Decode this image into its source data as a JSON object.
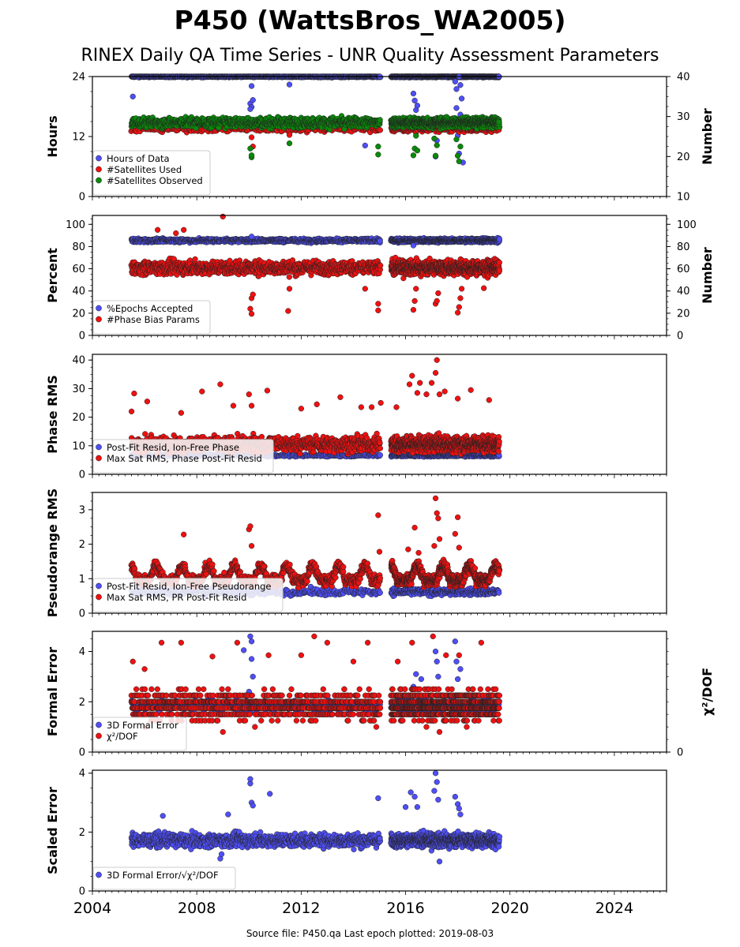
{
  "title": "P450 (WattsBros_WA2005)",
  "subtitle": "RINEX Daily QA Time Series - UNR Quality Assessment Parameters",
  "footer": "Source file: P450.qa Last epoch plotted: 2019-08-03",
  "colors": {
    "blue": "#4f4ff5",
    "red": "#ee1111",
    "green": "#0a8a0a",
    "edge": "#222222"
  },
  "chart_data": [
    {
      "type": "scatter",
      "panel": "hours",
      "ylabel": "Hours",
      "ylabel_right": "Number",
      "xlim": [
        2004,
        2026
      ],
      "ylim": [
        0,
        24
      ],
      "yticks": [
        "0",
        "12",
        "24"
      ],
      "ylim_right": [
        10,
        40
      ],
      "yticks_right": [
        "10",
        "20",
        "30",
        "40"
      ],
      "legend_position": "lower-left",
      "series": [
        {
          "name": "Hours of Data",
          "color": "blue",
          "axis": "left",
          "base": 24,
          "noise": 0.15,
          "density": 3,
          "dips": [
            [
              2005.55,
              20.0
            ],
            [
              2010.05,
              18.6
            ],
            [
              2010.1,
              17.9
            ],
            [
              2010.15,
              19.3
            ],
            [
              2010.1,
              22.1
            ],
            [
              2010.05,
              17.5
            ],
            [
              2011.55,
              22.4
            ],
            [
              2014.45,
              10.2
            ],
            [
              2016.3,
              20.6
            ],
            [
              2016.35,
              19.2
            ],
            [
              2016.4,
              17.3
            ],
            [
              2016.4,
              14.8
            ],
            [
              2016.45,
              18.2
            ],
            [
              2017.15,
              8.0
            ],
            [
              2017.2,
              11.2
            ],
            [
              2017.25,
              15.6
            ],
            [
              2017.9,
              23.0
            ],
            [
              2017.95,
              21.5
            ],
            [
              2017.95,
              17.7
            ],
            [
              2018.0,
              14.5
            ],
            [
              2018.0,
              12.2
            ],
            [
              2018.05,
              8.6
            ],
            [
              2018.1,
              16.4
            ],
            [
              2018.15,
              19.6
            ],
            [
              2018.2,
              6.8
            ],
            [
              2018.1,
              22.3
            ],
            [
              2018.05,
              24.0
            ]
          ]
        },
        {
          "name": "#Satellites Used",
          "color": "red",
          "axis": "right",
          "base": 27,
          "noise": 0.8,
          "density": 1,
          "dips": [
            [
              2010.1,
              24.8
            ],
            [
              2011.55,
              25.4
            ],
            [
              2010.15,
              22.5
            ]
          ]
        },
        {
          "name": "#Satellites Observed",
          "color": "green",
          "axis": "right",
          "base": 28.5,
          "noise": 1.2,
          "density": 3,
          "dips": [
            [
              2010.05,
              22.0
            ],
            [
              2010.1,
              19.8
            ],
            [
              2010.1,
              20.3
            ],
            [
              2011.55,
              23.3
            ],
            [
              2014.95,
              22.5
            ],
            [
              2014.95,
              20.5
            ],
            [
              2016.3,
              20.3
            ],
            [
              2016.35,
              22.0
            ],
            [
              2016.4,
              25.2
            ],
            [
              2016.45,
              21.5
            ],
            [
              2017.1,
              24.5
            ],
            [
              2017.15,
              20.2
            ],
            [
              2017.2,
              22.8
            ],
            [
              2017.95,
              24.3
            ],
            [
              2018.0,
              20.2
            ],
            [
              2018.05,
              18.8
            ],
            [
              2018.1,
              22.5
            ]
          ]
        }
      ]
    },
    {
      "type": "scatter",
      "panel": "percent",
      "ylabel": "Percent",
      "ylabel_right": "Number",
      "xlim": [
        2004,
        2026
      ],
      "ylim": [
        0,
        108
      ],
      "yticks": [
        "0",
        "20",
        "40",
        "60",
        "80",
        "100"
      ],
      "ylim_right": [
        0,
        108
      ],
      "yticks_right": [
        "0",
        "20",
        "40",
        "60",
        "80",
        "100"
      ],
      "legend_position": "lower-left",
      "series": [
        {
          "name": "%Epochs Accepted",
          "color": "blue",
          "axis": "left",
          "base": 85.5,
          "noise": 1.6,
          "density": 3,
          "dips": [
            [
              2010.1,
              89.0
            ],
            [
              2016.3,
              81.0
            ]
          ]
        },
        {
          "name": "#Phase Bias Params",
          "color": "red",
          "axis": "left",
          "base": 61,
          "noise": 6,
          "density": 3,
          "dips": [
            [
              2006.5,
              95
            ],
            [
              2007.2,
              92
            ],
            [
              2007.5,
              95
            ],
            [
              2009.0,
              107
            ],
            [
              2010.1,
              19.4
            ],
            [
              2010.1,
              33.5
            ],
            [
              2010.05,
              24.0
            ],
            [
              2010.15,
              36.8
            ],
            [
              2011.5,
              22.0
            ],
            [
              2011.55,
              42.0
            ],
            [
              2014.45,
              42.0
            ],
            [
              2014.95,
              28.5
            ],
            [
              2014.95,
              22.5
            ],
            [
              2016.3,
              23.0
            ],
            [
              2016.35,
              31.0
            ],
            [
              2016.4,
              42.0
            ],
            [
              2017.15,
              28.5
            ],
            [
              2017.2,
              31.0
            ],
            [
              2017.25,
              38.0
            ],
            [
              2018.0,
              20.5
            ],
            [
              2018.05,
              25.5
            ],
            [
              2018.1,
              33.5
            ],
            [
              2018.15,
              42.0
            ],
            [
              2019.0,
              42.5
            ]
          ]
        }
      ]
    },
    {
      "type": "scatter",
      "panel": "phase-rms",
      "ylabel": "Phase RMS",
      "xlim": [
        2004,
        2026
      ],
      "ylim": [
        0,
        42
      ],
      "yticks": [
        "0",
        "10",
        "20",
        "30",
        "40"
      ],
      "legend_position": "lower-left",
      "series": [
        {
          "name": "Post-Fit Resid, Ion-Free Phase",
          "color": "blue",
          "axis": "left",
          "base": 6.6,
          "noise": 0.4,
          "density": 1,
          "dips": []
        },
        {
          "name": "Max Sat RMS, Phase Post-Fit Resid",
          "color": "red",
          "axis": "left",
          "base": 10.5,
          "noise": 2.6,
          "density": 3,
          "dips": [
            [
              2005.6,
              28.3
            ],
            [
              2005.5,
              22.0
            ],
            [
              2006.1,
              25.5
            ],
            [
              2007.4,
              21.5
            ],
            [
              2008.2,
              29.0
            ],
            [
              2008.9,
              31.5
            ],
            [
              2009.4,
              24.0
            ],
            [
              2010.0,
              28.0
            ],
            [
              2010.1,
              24.0
            ],
            [
              2010.7,
              29.3
            ],
            [
              2012.0,
              23.0
            ],
            [
              2012.6,
              24.5
            ],
            [
              2013.5,
              27.0
            ],
            [
              2014.3,
              23.5
            ],
            [
              2014.7,
              23.5
            ],
            [
              2015.05,
              25.0
            ],
            [
              2015.65,
              23.5
            ],
            [
              2016.15,
              31.5
            ],
            [
              2016.25,
              34.5
            ],
            [
              2016.45,
              28.5
            ],
            [
              2016.55,
              32.0
            ],
            [
              2016.8,
              28.0
            ],
            [
              2017.0,
              32.0
            ],
            [
              2017.15,
              35.5
            ],
            [
              2017.2,
              40.0
            ],
            [
              2017.3,
              28.0
            ],
            [
              2017.5,
              29.0
            ],
            [
              2018.0,
              26.5
            ],
            [
              2018.5,
              29.5
            ],
            [
              2019.2,
              26.0
            ]
          ]
        }
      ]
    },
    {
      "type": "scatter",
      "panel": "pseudorange-rms",
      "ylabel": "Pseudorange RMS",
      "xlim": [
        2004,
        2026
      ],
      "ylim": [
        0,
        3.5
      ],
      "yticks": [
        "0",
        "1",
        "2",
        "3"
      ],
      "legend_position": "lower-left",
      "series": [
        {
          "name": "Post-Fit Resid, Ion-Free Pseudorange",
          "color": "blue",
          "axis": "left",
          "base": 0.62,
          "noise": 0.1,
          "density": 1,
          "dips": []
        },
        {
          "name": "Max Sat RMS, PR Post-Fit Resid",
          "color": "red",
          "axis": "left",
          "base": 0.95,
          "noise": 0.16,
          "density": 3,
          "seasonal": 0.42,
          "dips": [
            [
              2007.5,
              2.28
            ],
            [
              2010.0,
              2.43
            ],
            [
              2010.05,
              2.52
            ],
            [
              2010.1,
              1.95
            ],
            [
              2014.95,
              2.84
            ],
            [
              2015.0,
              1.78
            ],
            [
              2016.1,
              1.85
            ],
            [
              2016.35,
              2.48
            ],
            [
              2016.5,
              1.75
            ],
            [
              2017.1,
              1.95
            ],
            [
              2017.15,
              3.33
            ],
            [
              2017.2,
              2.9
            ],
            [
              2017.25,
              2.75
            ],
            [
              2017.3,
              2.15
            ],
            [
              2017.9,
              2.3
            ],
            [
              2018.0,
              2.78
            ],
            [
              2018.05,
              1.9
            ]
          ]
        }
      ]
    },
    {
      "type": "scatter",
      "panel": "formal-error",
      "ylabel": "Formal Error",
      "ylabel_right": "χ²/DOF",
      "xlim": [
        2004,
        2026
      ],
      "ylim": [
        0,
        4.8
      ],
      "yticks": [
        "0",
        "2",
        "4"
      ],
      "yticks_right": [
        "0"
      ],
      "legend_position": "lower-left",
      "series": [
        {
          "name": "3D Formal Error",
          "color": "blue",
          "axis": "left",
          "base": 1.85,
          "noise": 0.22,
          "density": 1,
          "dips": [
            [
              2009.8,
              4.05
            ],
            [
              2010.05,
              4.6
            ],
            [
              2010.1,
              4.4
            ],
            [
              2010.1,
              3.7
            ],
            [
              2010.15,
              3.0
            ],
            [
              2010.0,
              2.4
            ],
            [
              2016.3,
              2.6
            ],
            [
              2016.4,
              3.1
            ],
            [
              2016.6,
              2.9
            ],
            [
              2017.15,
              4.0
            ],
            [
              2017.2,
              3.6
            ],
            [
              2017.25,
              3.0
            ],
            [
              2017.9,
              4.4
            ],
            [
              2017.95,
              3.6
            ],
            [
              2018.0,
              2.9
            ],
            [
              2018.1,
              3.3
            ]
          ]
        },
        {
          "name": "χ²/DOF",
          "color": "red",
          "axis": "left",
          "base": 1.85,
          "noise": 0.55,
          "density": 3,
          "quantize": 0.25,
          "dips": [
            [
              2005.55,
              3.6
            ],
            [
              2006.0,
              3.3
            ],
            [
              2006.65,
              4.35
            ],
            [
              2007.4,
              4.35
            ],
            [
              2008.6,
              3.8
            ],
            [
              2009.55,
              4.35
            ],
            [
              2010.75,
              3.85
            ],
            [
              2012.0,
              3.85
            ],
            [
              2012.5,
              4.6
            ],
            [
              2013.0,
              4.35
            ],
            [
              2014.0,
              3.6
            ],
            [
              2014.55,
              4.35
            ],
            [
              2015.7,
              3.6
            ],
            [
              2016.25,
              4.35
            ],
            [
              2017.05,
              4.6
            ],
            [
              2017.55,
              3.85
            ],
            [
              2018.05,
              3.85
            ],
            [
              2018.9,
              4.35
            ],
            [
              2009.0,
              0.8
            ],
            [
              2017.3,
              0.8
            ]
          ]
        }
      ]
    },
    {
      "type": "scatter",
      "panel": "scaled-error",
      "ylabel": "Scaled Error",
      "xlim": [
        2004,
        2026
      ],
      "ylim": [
        0,
        4.1
      ],
      "yticks": [
        "0",
        "2",
        "4"
      ],
      "xticks": [
        "2004",
        "2008",
        "2012",
        "2016",
        "2020",
        "2024"
      ],
      "legend_position": "lower-left",
      "series": [
        {
          "name": "3D Formal Error/√χ²/DOF",
          "color": "blue",
          "axis": "left",
          "base": 1.72,
          "noise": 0.22,
          "density": 3,
          "dips": [
            [
              2006.7,
              2.55
            ],
            [
              2008.9,
              1.1
            ],
            [
              2008.95,
              1.25
            ],
            [
              2009.2,
              2.6
            ],
            [
              2010.05,
              3.65
            ],
            [
              2010.05,
              3.8
            ],
            [
              2010.1,
              3.0
            ],
            [
              2010.15,
              2.9
            ],
            [
              2010.8,
              3.3
            ],
            [
              2014.95,
              3.15
            ],
            [
              2016.0,
              2.85
            ],
            [
              2016.2,
              3.35
            ],
            [
              2016.35,
              3.2
            ],
            [
              2016.45,
              2.85
            ],
            [
              2017.1,
              3.4
            ],
            [
              2017.15,
              4.0
            ],
            [
              2017.2,
              3.7
            ],
            [
              2017.25,
              3.1
            ],
            [
              2017.9,
              3.2
            ],
            [
              2018.0,
              2.95
            ],
            [
              2018.05,
              2.8
            ],
            [
              2018.1,
              2.6
            ],
            [
              2017.3,
              1.0
            ]
          ]
        }
      ]
    }
  ]
}
